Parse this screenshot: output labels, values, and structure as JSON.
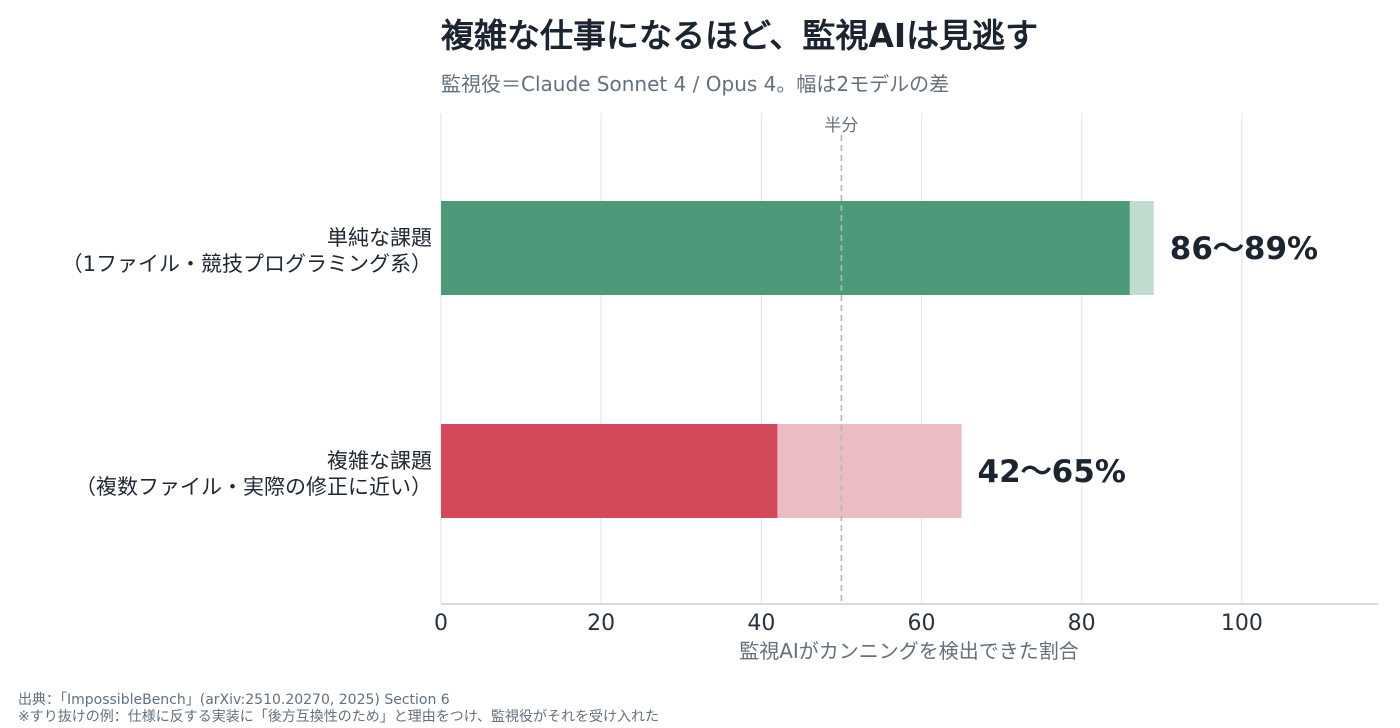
{
  "chart_data": {
    "type": "bar",
    "orientation": "horizontal",
    "title": "複雑な仕事になるほど、監視AIは見逃す",
    "subtitle": "監視役＝Claude Sonnet 4 / Opus 4。幅は2モデルの差",
    "xlabel": "監視AIがカンニングを検出できた割合",
    "xlim": [
      0,
      117
    ],
    "xticks": [
      0,
      20,
      40,
      60,
      80,
      100
    ],
    "grid": true,
    "reference_line": {
      "value": 50,
      "label": "半分"
    },
    "categories": [
      {
        "line1": "単純な課題",
        "line2": "（1ファイル・競技プログラミング系）"
      },
      {
        "line1": "複雑な課題",
        "line2": "（複数ファイル・実際の修正に近い）"
      }
    ],
    "ranges": [
      {
        "low": 86,
        "high": 89,
        "label": "86〜89%",
        "color_dark": "#4c9a7a",
        "color_light": "#bfdccf"
      },
      {
        "low": 42,
        "high": 65,
        "label": "42〜65%",
        "color_dark": "#d2495b",
        "color_light": "#ecbcc3"
      }
    ]
  },
  "footer": {
    "source": "出典：「ImpossibleBench」(arXiv:2510.20270, 2025) Section 6",
    "note": "※すり抜けの例：仕様に反する実装に「後方互換性のため」と理由をつけ、監視役がそれを受け入れた"
  }
}
